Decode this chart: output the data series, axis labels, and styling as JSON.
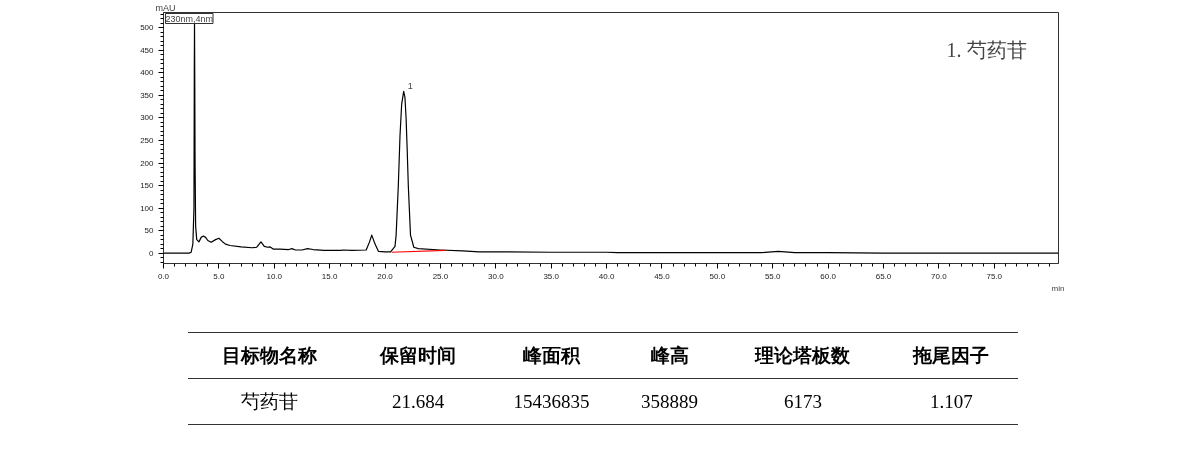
{
  "chart_data": {
    "type": "line",
    "xlabel": "min",
    "ylabel": "mAU",
    "xlim": [
      0,
      80.8
    ],
    "ylim": [
      -23,
      534
    ],
    "xticks": [
      {
        "value": 0,
        "label": "0.0"
      },
      {
        "value": 5,
        "label": "5.0"
      },
      {
        "value": 10,
        "label": "10.0"
      },
      {
        "value": 15,
        "label": "15.0"
      },
      {
        "value": 20,
        "label": "20.0"
      },
      {
        "value": 25,
        "label": "25.0"
      },
      {
        "value": 30,
        "label": "30.0"
      },
      {
        "value": 35,
        "label": "35.0"
      },
      {
        "value": 40,
        "label": "40.0"
      },
      {
        "value": 45,
        "label": "45.0"
      },
      {
        "value": 50,
        "label": "50.0"
      },
      {
        "value": 55,
        "label": "55.0"
      },
      {
        "value": 60,
        "label": "60.0"
      },
      {
        "value": 65,
        "label": "65.0"
      },
      {
        "value": 70,
        "label": "70.0"
      },
      {
        "value": 75,
        "label": "75.0"
      }
    ],
    "yticks": [
      0,
      50,
      100,
      150,
      200,
      250,
      300,
      350,
      400,
      450,
      500
    ],
    "grid": false,
    "series": [
      {
        "color": "#000000",
        "x": [
          0,
          2.3,
          2.5,
          2.65,
          2.75,
          2.78,
          2.8,
          2.82,
          2.85,
          2.9,
          3.0,
          3.2,
          3.4,
          3.6,
          3.8,
          4.0,
          4.3,
          4.7,
          5.0,
          5.3,
          5.6,
          6.0,
          7,
          8,
          8.4,
          8.8,
          9.1,
          9.4,
          9.6,
          9.9,
          10.5,
          11.3,
          11.6,
          11.9,
          12.5,
          13.0,
          13.5,
          14.5,
          16,
          16.2,
          17,
          18.3,
          18.6,
          18.8,
          19.1,
          19.4,
          20,
          20.5,
          20.9,
          21.0,
          21.2,
          21.35,
          21.5,
          21.684,
          21.8,
          21.9,
          22.0,
          22.1,
          22.3,
          22.6,
          23,
          25,
          27,
          28.5,
          30,
          35,
          40,
          41,
          45,
          50,
          54,
          55.5,
          57,
          60,
          65,
          80.8
        ],
        "values": [
          0,
          0,
          2,
          20,
          100,
          400,
          510,
          400,
          200,
          60,
          30,
          25,
          35,
          38,
          35,
          28,
          24,
          30,
          33,
          26,
          20,
          17,
          14,
          12,
          13,
          25,
          15,
          13,
          14,
          9,
          9,
          8,
          10,
          7,
          7,
          10,
          8,
          6,
          6,
          7,
          6,
          7,
          25,
          40,
          20,
          4,
          3,
          3,
          15,
          40,
          150,
          260,
          330,
          359,
          345,
          300,
          230,
          150,
          40,
          13,
          10,
          7,
          5,
          3,
          3,
          2,
          2,
          1,
          1,
          1,
          1,
          4,
          1,
          1,
          0,
          0
        ]
      },
      {
        "color": "#ff0000",
        "x": [
          20.6,
          25.5
        ],
        "values": [
          2,
          6
        ]
      }
    ],
    "annotations": [
      "230nm,4nm",
      {
        "text": "1",
        "x": 21.684,
        "y": 359
      },
      "1. 芍药苷",
      "目标物名称",
      "保留时间",
      "峰面积",
      "峰高",
      "理论塔板数",
      "拖尾因子",
      "芍药苷",
      "21.684",
      "15436835",
      "358889",
      "6173",
      "1.107"
    ]
  }
}
